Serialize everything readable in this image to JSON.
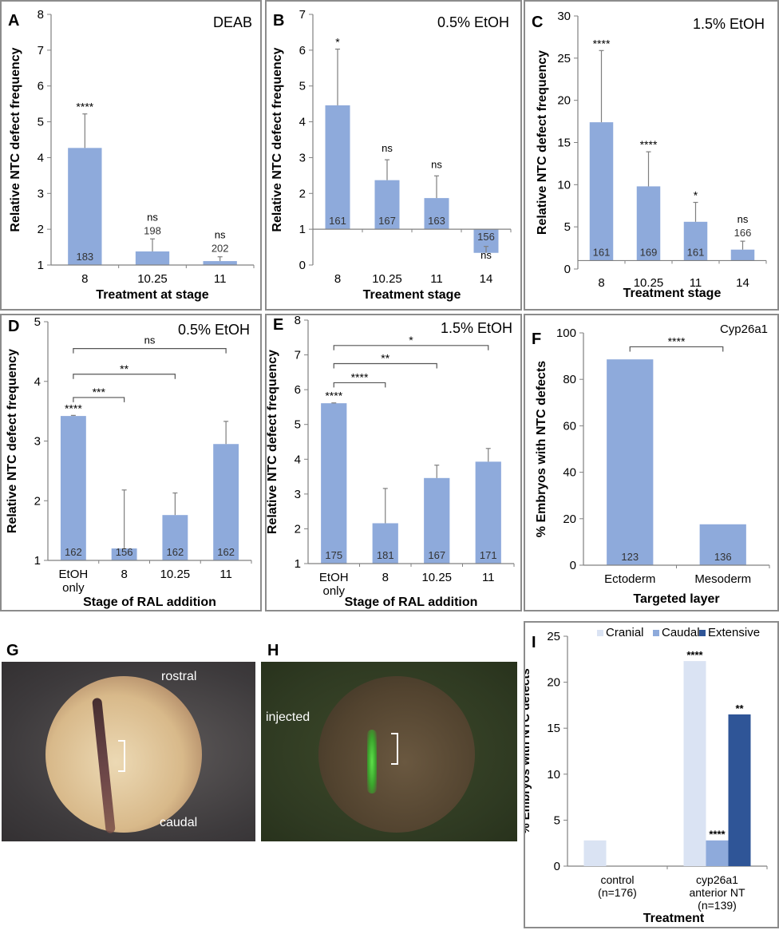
{
  "figure_colors": {
    "bar": "#8eaadb",
    "cranial": "#dae3f3",
    "caudal": "#8eaadb",
    "extensive": "#2f5597",
    "axis": "#808080",
    "frame": "#8c8c8c"
  },
  "chart_data": [
    {
      "id": "A",
      "type": "bar",
      "label": "A",
      "title": "DEAB",
      "ylabel": "Relative NTC defect frequency",
      "xlabel": "Treatment at stage",
      "ylim": [
        1,
        8
      ],
      "yticks": [
        1,
        2,
        3,
        4,
        5,
        6,
        7,
        8
      ],
      "baseline": 1,
      "categories": [
        "8",
        "10.25",
        "11"
      ],
      "values": [
        4.27,
        1.38,
        1.11
      ],
      "error_upper": [
        5.22,
        1.73,
        1.23
      ],
      "n_labels": [
        "183",
        "198",
        "202"
      ],
      "n_label_position": [
        "inside",
        "above",
        "above"
      ],
      "significance": [
        "****",
        "ns",
        "ns"
      ]
    },
    {
      "id": "B",
      "type": "bar",
      "label": "B",
      "title": "0.5% EtOH",
      "ylabel": "Relative NTC defect frequency",
      "xlabel": "Treatment stage",
      "ylim": [
        0,
        7
      ],
      "yticks": [
        0,
        1,
        2,
        3,
        4,
        5,
        6,
        7
      ],
      "baseline": 1,
      "categories": [
        "8",
        "10.25",
        "11",
        "14"
      ],
      "values": [
        4.46,
        2.37,
        1.87,
        0.34
      ],
      "error_upper": [
        6.03,
        2.94,
        2.49,
        0.52
      ],
      "n_labels": [
        "161",
        "167",
        "163",
        "156"
      ],
      "n_label_position": [
        "inside",
        "inside",
        "inside",
        "inside"
      ],
      "significance": [
        "*",
        "ns",
        "ns",
        "ns"
      ]
    },
    {
      "id": "C",
      "type": "bar",
      "label": "C",
      "title": "1.5% EtOH",
      "ylabel": "Relative NTC defect frequency",
      "xlabel": "Treatment stage",
      "ylim": [
        0,
        30
      ],
      "yticks": [
        0,
        5,
        10,
        15,
        20,
        25,
        30
      ],
      "baseline": 1,
      "categories": [
        "8",
        "10.25",
        "11",
        "14"
      ],
      "values": [
        17.4,
        9.8,
        5.6,
        2.3
      ],
      "error_upper": [
        25.9,
        13.9,
        7.9,
        3.3
      ],
      "n_labels": [
        "161",
        "169",
        "161",
        "166"
      ],
      "n_label_position": [
        "inside",
        "inside",
        "inside",
        "above"
      ],
      "significance": [
        "****",
        "****",
        "*",
        "ns"
      ]
    },
    {
      "id": "D",
      "type": "bar",
      "label": "D",
      "title": "0.5% EtOH",
      "ylabel": "Relative NTC defect frequency",
      "xlabel": "Stage of RAL addition",
      "ylim": [
        1,
        5
      ],
      "yticks": [
        1,
        2,
        3,
        4,
        5
      ],
      "baseline": 1,
      "categories": [
        "EtOH only",
        "8",
        "10.25",
        "11"
      ],
      "values": [
        3.42,
        1.2,
        1.76,
        2.95
      ],
      "error_upper": [
        3.43,
        2.18,
        2.13,
        3.33
      ],
      "n_labels": [
        "162",
        "156",
        "162",
        "162"
      ],
      "n_label_position": [
        "inside",
        "inside",
        "inside",
        "inside"
      ],
      "significance": [
        "****",
        "",
        "",
        ""
      ],
      "comparisons": [
        {
          "from": 0,
          "to": 1,
          "label": "***",
          "y": 3.73
        },
        {
          "from": 0,
          "to": 2,
          "label": "**",
          "y": 4.12
        },
        {
          "from": 0,
          "to": 3,
          "label": "ns",
          "y": 4.55
        }
      ]
    },
    {
      "id": "E",
      "type": "bar",
      "label": "E",
      "title": "1.5% EtOH",
      "ylabel": "Relative NTC defect frequency",
      "xlabel": "Stage of RAL addition",
      "ylim": [
        1,
        8
      ],
      "yticks": [
        1,
        2,
        3,
        4,
        5,
        6,
        7,
        8
      ],
      "baseline": 1,
      "categories": [
        "EtOH only",
        "8",
        "10.25",
        "11"
      ],
      "values": [
        5.61,
        2.16,
        3.46,
        3.93
      ],
      "error_upper": [
        5.62,
        3.16,
        3.83,
        4.31
      ],
      "n_labels": [
        "175",
        "181",
        "167",
        "171"
      ],
      "n_label_position": [
        "inside",
        "inside",
        "inside",
        "inside"
      ],
      "significance": [
        "****",
        "",
        "",
        ""
      ],
      "comparisons": [
        {
          "from": 0,
          "to": 1,
          "label": "****",
          "y": 6.2
        },
        {
          "from": 0,
          "to": 2,
          "label": "**",
          "y": 6.75
        },
        {
          "from": 0,
          "to": 3,
          "label": "*",
          "y": 7.27
        }
      ]
    },
    {
      "id": "F",
      "type": "bar",
      "label": "F",
      "title": "Cyp26a1",
      "ylabel": "% Embryos with NTC defects",
      "xlabel": "Targeted layer",
      "ylim": [
        0,
        100
      ],
      "yticks": [
        0,
        20,
        40,
        60,
        80,
        100
      ],
      "baseline": 0,
      "categories": [
        "Ectoderm",
        "Mesoderm"
      ],
      "values": [
        88.6,
        17.6
      ],
      "error_upper": [
        null,
        null
      ],
      "n_labels": [
        "123",
        "136"
      ],
      "n_label_position": [
        "inside",
        "inside"
      ],
      "significance": [
        "",
        ""
      ],
      "comparisons": [
        {
          "from": 0,
          "to": 1,
          "label": "****",
          "y": 94
        }
      ]
    },
    {
      "id": "I",
      "type": "bar",
      "label": "I",
      "title": "",
      "ylabel": "% Embryos with NTC defects",
      "xlabel": "Treatment",
      "ylim": [
        0,
        25
      ],
      "yticks": [
        0,
        5,
        10,
        15,
        20,
        25
      ],
      "baseline": 0,
      "categories": [
        "control\n(n=176)",
        "cyp26a1\nanterior NT\n(n=139)"
      ],
      "legend": {
        "position": "top",
        "entries": [
          "Cranial",
          "Caudal",
          "Extensive"
        ]
      },
      "series": [
        {
          "name": "Cranial",
          "values": [
            2.8,
            22.3
          ],
          "significance": [
            "",
            "****"
          ]
        },
        {
          "name": "Caudal",
          "values": [
            0,
            2.8
          ],
          "significance": [
            "",
            "****"
          ]
        },
        {
          "name": "Extensive",
          "values": [
            0,
            16.5
          ],
          "significance": [
            "",
            "**"
          ]
        }
      ]
    }
  ],
  "photos": {
    "G": {
      "label": "G",
      "annotations": [
        "rostral",
        "caudal"
      ]
    },
    "H": {
      "label": "H",
      "annotations": [
        "injected"
      ]
    }
  }
}
